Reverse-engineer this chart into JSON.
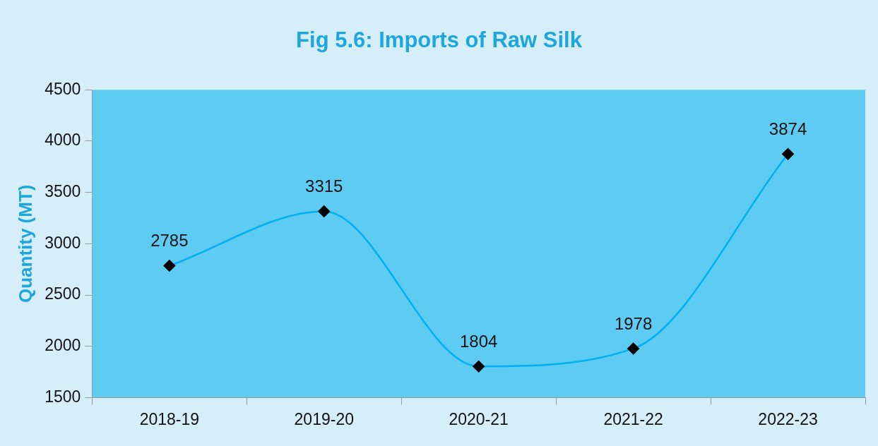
{
  "chart_data": {
    "type": "line",
    "title": "Fig 5.6: Imports of Raw Silk",
    "ylabel": "Quantity (MT)",
    "categories": [
      "2018-19",
      "2019-20",
      "2020-21",
      "2021-22",
      "2022-23"
    ],
    "series": [
      {
        "color": "#00b0f0",
        "values": [
          2785,
          3315,
          1804,
          1978,
          3874
        ]
      }
    ],
    "ylim": [
      1500,
      4500
    ],
    "yticks": [
      1500,
      2000,
      2500,
      3000,
      3500,
      4000,
      4500
    ],
    "grid": false,
    "legend": false,
    "marker": "diamond",
    "line_style": "solid",
    "data_labels": true
  }
}
